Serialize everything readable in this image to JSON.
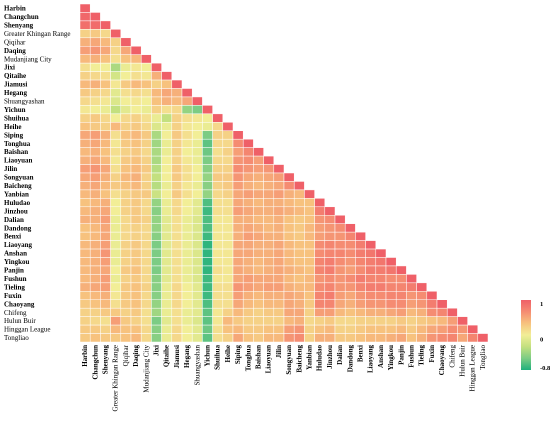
{
  "chart_data": {
    "type": "heatmap",
    "title": "",
    "xlabel": "",
    "ylabel": "",
    "layout": "lower-triangle correlation matrix",
    "color_scale": {
      "min": -0.8,
      "max": 1,
      "ticks": [
        "1",
        "0",
        "-0.8"
      ],
      "stops": [
        "#1fb07c",
        "#7ccc84",
        "#c3e07f",
        "#f2ee97",
        "#f7c27e",
        "#f58c72",
        "#ef6068"
      ]
    },
    "cities": [
      "Harbin",
      "Changchun",
      "Shenyang",
      "Greater Khingan Range",
      "Qiqihar",
      "Daqing",
      "Mudanjiang City",
      "Jixi",
      "Qitaihe",
      "Jiamusi",
      "Hegang",
      "Shuangyashan",
      "Yichun",
      "Shuihua",
      "Heihe",
      "Siping",
      "Tonghua",
      "Baishan",
      "Liaoyuan",
      "Jilin",
      "Songyuan",
      "Baicheng",
      "Yanbian",
      "Huludao",
      "Jinzhou",
      "Dalian",
      "Dandong",
      "Benxi",
      "Liaoyang",
      "Anshan",
      "Yingkou",
      "Panjin",
      "Fushun",
      "Tieling",
      "Fuxin",
      "Chaoyang",
      "Chifeng",
      "Hulun Buir",
      "Hinggan League",
      "Tongliao"
    ],
    "x_labels": [
      "Harbin",
      "Changchun",
      "Shenyang",
      "Greater Khingan Range",
      "Qiqihar",
      "Daqing",
      "Mudanjiang City",
      "Jixi",
      "Qitaihe",
      "Jiamusi",
      "Hegang",
      "Shuangyashan",
      "Yichun",
      "Shuihua",
      "Heihe",
      "Siping",
      "Tonghua",
      "Baishan",
      "Liaoyuan",
      "Jilin",
      "Songyuan",
      "Baicheng",
      "Yanbian",
      "Huludao",
      "Jinzhou",
      "Dalian",
      "Dandong",
      "Benxi",
      "Liaoyang",
      "Anshan",
      "Yingkou",
      "Panjin",
      "Fushun",
      "Tieling",
      "Fuxin",
      "Chaoyang",
      "Chifeng",
      "Hulun Buir",
      "Hinggan League",
      "Tongliao"
    ],
    "y_labels": [
      "Harbin",
      "Changchun",
      "Shenyang",
      "Greater Khingan Range",
      "Qiqihar",
      "Daqing",
      "Mudanjiang City",
      "Jixi",
      "Qitaihe",
      "Jiamusi",
      "Hegang",
      "Shuangyashan",
      "Yichun",
      "Shuihua",
      "Heihe",
      "Siping",
      "Tonghua",
      "Baishan",
      "Liaoyuan",
      "Jilin",
      "Songyuan",
      "Baicheng",
      "Yanbian",
      "Huludao",
      "Jinzhou",
      "Dalian",
      "Dandong",
      "Benxi",
      "Liaoyang",
      "Anshan",
      "Yingkou",
      "Panjin",
      "Fushun",
      "Tieling",
      "Fuxin",
      "Chaoyang",
      "Chifeng",
      "Hulun Buir",
      "Hinggan League",
      "Tongliao"
    ],
    "bold_labels": [
      "Harbin",
      "Changchun",
      "Shenyang",
      "Daqing",
      "Jixi",
      "Qitaihe",
      "Jiamusi",
      "Hegang",
      "Yichun",
      "Shuihua",
      "Heihe",
      "Siping",
      "Tonghua",
      "Baishan",
      "Liaoyuan",
      "Jilin",
      "Songyuan",
      "Baicheng",
      "Yanbian",
      "Huludao",
      "Jinzhou",
      "Dalian",
      "Dandong",
      "Benxi",
      "Liaoyang",
      "Anshan",
      "Yingkou",
      "Panjin",
      "Fushun",
      "Tieling",
      "Fuxin",
      "Chaoyang"
    ],
    "values": [
      [
        1
      ],
      [
        0.95,
        1
      ],
      [
        0.9,
        0.92,
        1
      ],
      [
        0.3,
        0.35,
        0.25,
        1
      ],
      [
        0.5,
        0.55,
        0.45,
        0.3,
        1
      ],
      [
        0.6,
        0.65,
        0.55,
        0.25,
        0.55,
        1
      ],
      [
        0.45,
        0.5,
        0.4,
        0.2,
        0.4,
        0.45,
        1
      ],
      [
        0.2,
        0.1,
        0.1,
        -0.3,
        0.05,
        0.15,
        0.1,
        1
      ],
      [
        0.3,
        0.25,
        0.2,
        -0.1,
        0.1,
        0.2,
        0.15,
        0.5,
        1
      ],
      [
        0.45,
        0.5,
        0.4,
        0.15,
        0.35,
        0.45,
        0.4,
        0.3,
        0.4,
        1
      ],
      [
        0.35,
        0.3,
        0.25,
        0,
        0.2,
        0.25,
        0.2,
        0.45,
        0.55,
        0.5,
        1
      ],
      [
        0.25,
        0.2,
        0.15,
        -0.05,
        0.1,
        0.15,
        0.1,
        0.4,
        0.5,
        0.45,
        0.55,
        1
      ],
      [
        0.15,
        0.1,
        0.05,
        -0.2,
        0,
        0.1,
        0.05,
        0.3,
        0.2,
        0.25,
        -0.4,
        -0.5,
        1
      ],
      [
        0.3,
        0.35,
        0.25,
        0.1,
        0.25,
        0.3,
        0.2,
        0.05,
        -0.2,
        0.3,
        0.2,
        0.15,
        0.1,
        1
      ],
      [
        0.4,
        0.35,
        0.3,
        0.45,
        0.3,
        0.35,
        0.25,
        -0.05,
        0.05,
        0.3,
        0.15,
        0.1,
        0.05,
        0.25,
        1
      ],
      [
        0.55,
        0.6,
        0.5,
        0.2,
        0.4,
        0.45,
        0.35,
        -0.3,
        0.1,
        0.35,
        0.2,
        0.1,
        -0.5,
        0.3,
        0.3,
        1
      ],
      [
        0.5,
        0.55,
        0.45,
        0.15,
        0.35,
        0.4,
        0.3,
        -0.35,
        0.05,
        0.3,
        0.15,
        0.05,
        -0.6,
        0.25,
        0.25,
        0.7,
        1
      ],
      [
        0.45,
        0.5,
        0.4,
        0.2,
        0.3,
        0.35,
        0.25,
        -0.3,
        0.05,
        0.3,
        0.1,
        0.05,
        -0.55,
        0.2,
        0.3,
        0.6,
        0.75,
        1
      ],
      [
        0.5,
        0.55,
        0.45,
        0.15,
        0.35,
        0.4,
        0.3,
        -0.3,
        0.1,
        0.3,
        0.15,
        0.05,
        -0.5,
        0.25,
        0.25,
        0.65,
        0.7,
        0.6,
        1
      ],
      [
        0.6,
        0.65,
        0.55,
        0.2,
        0.4,
        0.45,
        0.35,
        -0.25,
        0.1,
        0.35,
        0.2,
        0.1,
        -0.45,
        0.3,
        0.3,
        0.7,
        0.65,
        0.6,
        0.65,
        1
      ],
      [
        0.55,
        0.6,
        0.5,
        0.3,
        0.45,
        0.5,
        0.3,
        -0.2,
        0.1,
        0.35,
        0.2,
        0.1,
        -0.4,
        0.35,
        0.35,
        0.65,
        0.55,
        0.5,
        0.55,
        0.6,
        1
      ],
      [
        0.5,
        0.55,
        0.45,
        0.35,
        0.4,
        0.45,
        0.3,
        -0.25,
        0.05,
        0.3,
        0.15,
        0.05,
        -0.45,
        0.3,
        0.35,
        0.6,
        0.5,
        0.45,
        0.5,
        0.55,
        0.7,
        1
      ],
      [
        0.45,
        0.5,
        0.4,
        0.2,
        0.3,
        0.35,
        0.35,
        -0.15,
        0.1,
        0.35,
        0.2,
        0.1,
        -0.4,
        0.25,
        0.3,
        0.55,
        0.6,
        0.55,
        0.55,
        0.6,
        0.5,
        0.45,
        1
      ],
      [
        0.4,
        0.45,
        0.5,
        0.1,
        0.3,
        0.35,
        0.25,
        -0.4,
        0.05,
        0.25,
        0.1,
        0,
        -0.65,
        0.2,
        0.2,
        0.55,
        0.5,
        0.45,
        0.5,
        0.5,
        0.45,
        0.4,
        0.4,
        1
      ],
      [
        0.45,
        0.5,
        0.55,
        0.1,
        0.3,
        0.35,
        0.25,
        -0.45,
        0.05,
        0.25,
        0.1,
        0,
        -0.7,
        0.2,
        0.2,
        0.6,
        0.55,
        0.5,
        0.5,
        0.55,
        0.5,
        0.45,
        0.4,
        0.8,
        1
      ],
      [
        0.5,
        0.5,
        0.6,
        0.05,
        0.25,
        0.35,
        0.3,
        -0.4,
        0,
        0.2,
        0.05,
        -0.05,
        -0.65,
        0.15,
        0.15,
        0.5,
        0.5,
        0.45,
        0.45,
        0.5,
        0.4,
        0.35,
        0.4,
        0.65,
        0.7,
        1
      ],
      [
        0.4,
        0.45,
        0.55,
        0.05,
        0.25,
        0.3,
        0.25,
        -0.4,
        0,
        0.2,
        0.05,
        -0.05,
        -0.65,
        0.15,
        0.15,
        0.5,
        0.55,
        0.5,
        0.45,
        0.5,
        0.4,
        0.35,
        0.45,
        0.6,
        0.65,
        0.7,
        1
      ],
      [
        0.4,
        0.45,
        0.55,
        0.05,
        0.25,
        0.3,
        0.25,
        -0.45,
        0,
        0.2,
        0.05,
        -0.05,
        -0.7,
        0.15,
        0.15,
        0.5,
        0.6,
        0.55,
        0.5,
        0.5,
        0.4,
        0.35,
        0.45,
        0.6,
        0.65,
        0.65,
        0.75,
        1
      ],
      [
        0.45,
        0.5,
        0.6,
        0.05,
        0.3,
        0.35,
        0.25,
        -0.5,
        0,
        0.2,
        0.05,
        -0.05,
        -0.75,
        0.15,
        0.15,
        0.55,
        0.55,
        0.5,
        0.5,
        0.55,
        0.45,
        0.4,
        0.4,
        0.7,
        0.75,
        0.7,
        0.7,
        0.8,
        1
      ],
      [
        0.45,
        0.5,
        0.65,
        0.05,
        0.3,
        0.35,
        0.25,
        -0.5,
        0,
        0.2,
        0.05,
        -0.05,
        -0.75,
        0.15,
        0.15,
        0.55,
        0.55,
        0.5,
        0.5,
        0.55,
        0.45,
        0.4,
        0.4,
        0.7,
        0.75,
        0.75,
        0.7,
        0.8,
        0.85,
        1
      ],
      [
        0.45,
        0.5,
        0.6,
        0.05,
        0.3,
        0.35,
        0.25,
        -0.5,
        0,
        0.2,
        0.05,
        -0.05,
        -0.75,
        0.15,
        0.15,
        0.55,
        0.5,
        0.45,
        0.5,
        0.55,
        0.45,
        0.4,
        0.4,
        0.75,
        0.8,
        0.7,
        0.65,
        0.75,
        0.8,
        0.85,
        1
      ],
      [
        0.45,
        0.5,
        0.55,
        0.1,
        0.35,
        0.4,
        0.25,
        -0.5,
        0,
        0.2,
        0.05,
        -0.05,
        -0.75,
        0.2,
        0.15,
        0.55,
        0.5,
        0.45,
        0.5,
        0.55,
        0.5,
        0.45,
        0.4,
        0.75,
        0.8,
        0.65,
        0.6,
        0.7,
        0.8,
        0.8,
        0.85,
        1
      ],
      [
        0.45,
        0.5,
        0.6,
        0.05,
        0.3,
        0.35,
        0.25,
        -0.45,
        0,
        0.2,
        0.05,
        -0.05,
        -0.7,
        0.15,
        0.15,
        0.55,
        0.6,
        0.55,
        0.55,
        0.55,
        0.45,
        0.4,
        0.45,
        0.65,
        0.7,
        0.65,
        0.7,
        0.8,
        0.75,
        0.75,
        0.7,
        0.7,
        1
      ],
      [
        0.5,
        0.55,
        0.6,
        0.1,
        0.35,
        0.4,
        0.3,
        -0.45,
        0.05,
        0.25,
        0.1,
        0,
        -0.7,
        0.2,
        0.2,
        0.65,
        0.6,
        0.55,
        0.6,
        0.6,
        0.5,
        0.45,
        0.45,
        0.7,
        0.75,
        0.65,
        0.65,
        0.75,
        0.8,
        0.8,
        0.75,
        0.75,
        0.8,
        1
      ],
      [
        0.4,
        0.45,
        0.5,
        0.15,
        0.35,
        0.4,
        0.25,
        -0.45,
        0.05,
        0.25,
        0.1,
        0,
        -0.7,
        0.2,
        0.2,
        0.6,
        0.5,
        0.45,
        0.5,
        0.5,
        0.55,
        0.5,
        0.4,
        0.75,
        0.8,
        0.6,
        0.55,
        0.65,
        0.7,
        0.7,
        0.75,
        0.75,
        0.65,
        0.7,
        1
      ],
      [
        0.35,
        0.4,
        0.45,
        0.2,
        0.35,
        0.4,
        0.25,
        -0.4,
        0.05,
        0.25,
        0.1,
        0,
        -0.65,
        0.2,
        0.2,
        0.55,
        0.45,
        0.4,
        0.45,
        0.45,
        0.55,
        0.5,
        0.35,
        0.75,
        0.75,
        0.55,
        0.5,
        0.6,
        0.65,
        0.65,
        0.7,
        0.7,
        0.6,
        0.65,
        0.8,
        1
      ],
      [
        0.3,
        0.3,
        0.35,
        0.35,
        0.3,
        0.35,
        0.2,
        -0.35,
        0.05,
        0.2,
        0.05,
        0,
        -0.6,
        0.15,
        0.3,
        0.45,
        0.35,
        0.3,
        0.35,
        0.35,
        0.55,
        0.55,
        0.3,
        0.6,
        0.6,
        0.45,
        0.4,
        0.45,
        0.5,
        0.5,
        0.55,
        0.6,
        0.45,
        0.5,
        0.7,
        0.75,
        1
      ],
      [
        0.3,
        0.25,
        0.2,
        0.6,
        0.35,
        0.3,
        0.2,
        -0.5,
        0,
        0.2,
        0.05,
        -0.05,
        -0.6,
        0.15,
        0.45,
        0.35,
        0.3,
        0.3,
        0.3,
        0.3,
        0.45,
        0.5,
        0.25,
        0.3,
        0.35,
        0.25,
        0.25,
        0.3,
        0.3,
        0.3,
        0.3,
        0.35,
        0.3,
        0.35,
        0.4,
        0.45,
        0.6,
        1
      ],
      [
        0.35,
        0.35,
        0.3,
        0.45,
        0.4,
        0.4,
        0.25,
        -0.45,
        0.05,
        0.25,
        0.1,
        0,
        -0.55,
        0.2,
        0.4,
        0.45,
        0.35,
        0.35,
        0.4,
        0.4,
        0.6,
        0.65,
        0.3,
        0.4,
        0.45,
        0.3,
        0.3,
        0.35,
        0.4,
        0.4,
        0.4,
        0.45,
        0.35,
        0.45,
        0.55,
        0.6,
        0.7,
        0.65,
        1
      ],
      [
        0.35,
        0.4,
        0.35,
        0.35,
        0.4,
        0.45,
        0.25,
        -0.45,
        0.05,
        0.25,
        0.1,
        0,
        -0.6,
        0.2,
        0.3,
        0.55,
        0.4,
        0.35,
        0.45,
        0.45,
        0.65,
        0.7,
        0.3,
        0.5,
        0.5,
        0.35,
        0.35,
        0.4,
        0.45,
        0.45,
        0.5,
        0.55,
        0.4,
        0.5,
        0.65,
        0.7,
        0.75,
        0.55,
        0.75,
        1
      ]
    ]
  }
}
